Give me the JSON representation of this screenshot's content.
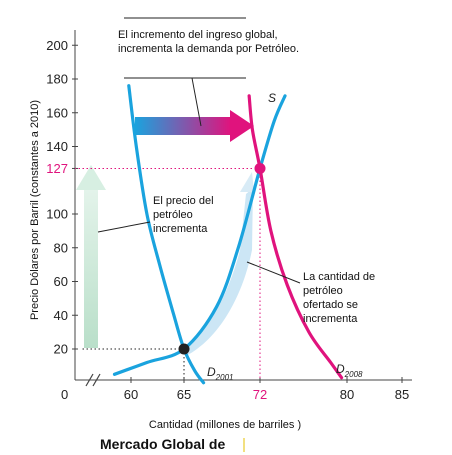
{
  "chart_data": {
    "type": "line",
    "title": "Mercado Global de",
    "xlabel": "Cantidad (millones de barriles )",
    "ylabel": "Precio Dólares por Barril (constantes a 2010)",
    "x_ticks": [
      60,
      65,
      72,
      80,
      85
    ],
    "y_ticks": [
      20,
      40,
      60,
      80,
      100,
      127,
      140,
      160,
      180,
      200
    ],
    "origin_label": "0",
    "highlight": {
      "x": 72,
      "y": 127,
      "color": "#e0137d"
    },
    "series": [
      {
        "name": "D2001",
        "label_main": "D",
        "label_sub": "2001",
        "color": "#1aa3de",
        "x": [
          59.8,
          60.5,
          61.5,
          62.7,
          64.0,
          65.0,
          66.0,
          66.8
        ],
        "y": [
          176,
          140,
          100,
          70,
          41,
          20,
          7,
          0
        ]
      },
      {
        "name": "S",
        "label_main": "S",
        "color": "#1aa3de",
        "x": [
          58.5,
          61.5,
          65.0,
          68.0,
          70.0,
          72.0,
          73.3,
          74.3
        ],
        "y": [
          5,
          12,
          20,
          45,
          80,
          127,
          155,
          170
        ]
      },
      {
        "name": "D2008",
        "label_main": "D",
        "label_sub": "2008",
        "color": "#e0137d",
        "x": [
          71.0,
          71.3,
          72.0,
          73.0,
          74.5,
          76.5,
          78.5,
          79.5
        ],
        "y": [
          170,
          150,
          127,
          90,
          58,
          30,
          12,
          3
        ]
      }
    ],
    "points": [
      {
        "x": 65,
        "y": 20,
        "color": "#222222"
      },
      {
        "x": 72,
        "y": 127,
        "color": "#e0137d"
      }
    ],
    "annotations": {
      "income": [
        "El incremento del ingreso global,",
        "incrementa la demanda por Petróleo."
      ],
      "price": [
        "El precio del",
        "petróleo",
        "incrementa"
      ],
      "quantity": [
        "La cantidad de",
        "petróleo",
        "ofertado se",
        "incrementa"
      ]
    },
    "grid": false
  }
}
